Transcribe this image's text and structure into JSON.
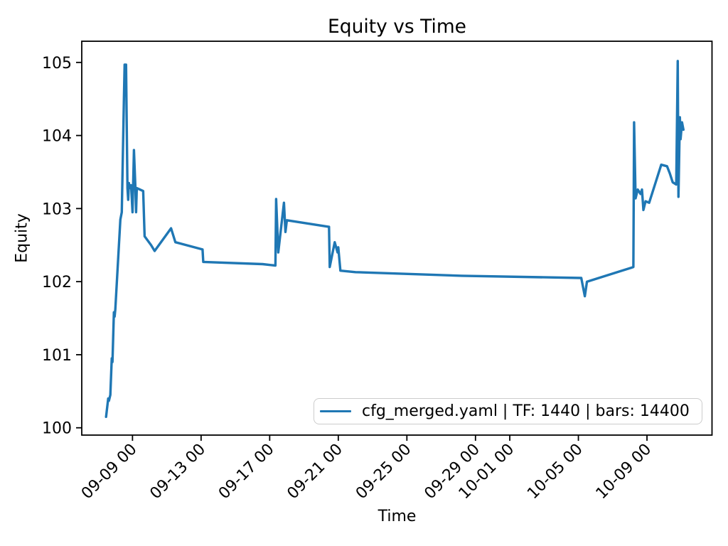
{
  "chart_data": {
    "type": "line",
    "title": "Equity vs Time",
    "xlabel": "Time",
    "ylabel": "Equity",
    "grid": false,
    "legend_position": "lower right",
    "x_range": [
      "09-06 01",
      "10-12 19"
    ],
    "y_range": [
      99.9,
      105.29
    ],
    "y_ticks": [
      100,
      101,
      102,
      103,
      104,
      105
    ],
    "x_ticks": [
      "09-09 00",
      "09-13 00",
      "09-17 00",
      "09-21 00",
      "09-25 00",
      "09-29 00",
      "10-01 00",
      "10-05 00",
      "10-09 00"
    ],
    "series": [
      {
        "name": "cfg_merged.yaml | TF: 1440 | bars: 14400",
        "color": "#1f77b4",
        "points": [
          [
            "09-07 11",
            100.15
          ],
          [
            "09-07 14",
            100.4
          ],
          [
            "09-07 15",
            100.37
          ],
          [
            "09-07 17",
            100.45
          ],
          [
            "09-07 19",
            100.95
          ],
          [
            "09-07 20",
            100.9
          ],
          [
            "09-07 22",
            101.58
          ],
          [
            "09-07 23",
            101.52
          ],
          [
            "09-08 00",
            101.62
          ],
          [
            "09-08 07",
            102.85
          ],
          [
            "09-08 09",
            102.95
          ],
          [
            "09-08 12",
            104.5
          ],
          [
            "09-08 13",
            104.97
          ],
          [
            "09-08 15",
            104.97
          ],
          [
            "09-08 16",
            104.1
          ],
          [
            "09-08 17",
            103.28
          ],
          [
            "09-08 18",
            103.12
          ],
          [
            "09-08 19",
            103.35
          ],
          [
            "09-08 20",
            103.28
          ],
          [
            "09-08 22",
            103.32
          ],
          [
            "09-09 00",
            102.95
          ],
          [
            "09-09 02",
            103.8
          ],
          [
            "09-09 04",
            103.3
          ],
          [
            "09-09 05",
            102.95
          ],
          [
            "09-09 06",
            103.28
          ],
          [
            "09-09 15",
            103.24
          ],
          [
            "09-09 17",
            102.62
          ],
          [
            "09-10 02",
            102.5
          ],
          [
            "09-10 07",
            102.42
          ],
          [
            "09-11 06",
            102.73
          ],
          [
            "09-11 12",
            102.54
          ],
          [
            "09-13 02",
            102.44
          ],
          [
            "09-13 03",
            102.27
          ],
          [
            "09-16 14",
            102.24
          ],
          [
            "09-17 08",
            102.22
          ],
          [
            "09-17 09",
            103.13
          ],
          [
            "09-17 12",
            102.4
          ],
          [
            "09-17 20",
            103.08
          ],
          [
            "09-17 22",
            102.68
          ],
          [
            "09-18 00",
            102.84
          ],
          [
            "09-20 11",
            102.75
          ],
          [
            "09-20 12",
            102.2
          ],
          [
            "09-20 19",
            102.54
          ],
          [
            "09-20 23",
            102.4
          ],
          [
            "09-21 00",
            102.47
          ],
          [
            "09-21 03",
            102.15
          ],
          [
            "09-22 00",
            102.13
          ],
          [
            "09-28 05",
            102.08
          ],
          [
            "10-05 04",
            102.05
          ],
          [
            "10-05 09",
            101.8
          ],
          [
            "10-05 12",
            102.0
          ],
          [
            "10-08 02",
            102.19
          ],
          [
            "10-08 05",
            102.2
          ],
          [
            "10-08 06",
            104.18
          ],
          [
            "10-08 08",
            103.14
          ],
          [
            "10-08 11",
            103.26
          ],
          [
            "10-08 15",
            103.2
          ],
          [
            "10-08 17",
            103.26
          ],
          [
            "10-08 19",
            102.98
          ],
          [
            "10-08 22",
            103.1
          ],
          [
            "10-09 03",
            103.08
          ],
          [
            "10-09 20",
            103.6
          ],
          [
            "10-10 04",
            103.58
          ],
          [
            "10-10 08",
            103.48
          ],
          [
            "10-10 12",
            103.36
          ],
          [
            "10-10 17",
            103.33
          ],
          [
            "10-10 19",
            105.02
          ],
          [
            "10-10 20",
            103.16
          ],
          [
            "10-10 22",
            104.25
          ],
          [
            "10-10 23",
            103.95
          ],
          [
            "10-11 01",
            104.18
          ],
          [
            "10-11 03",
            104.08
          ]
        ]
      }
    ]
  }
}
